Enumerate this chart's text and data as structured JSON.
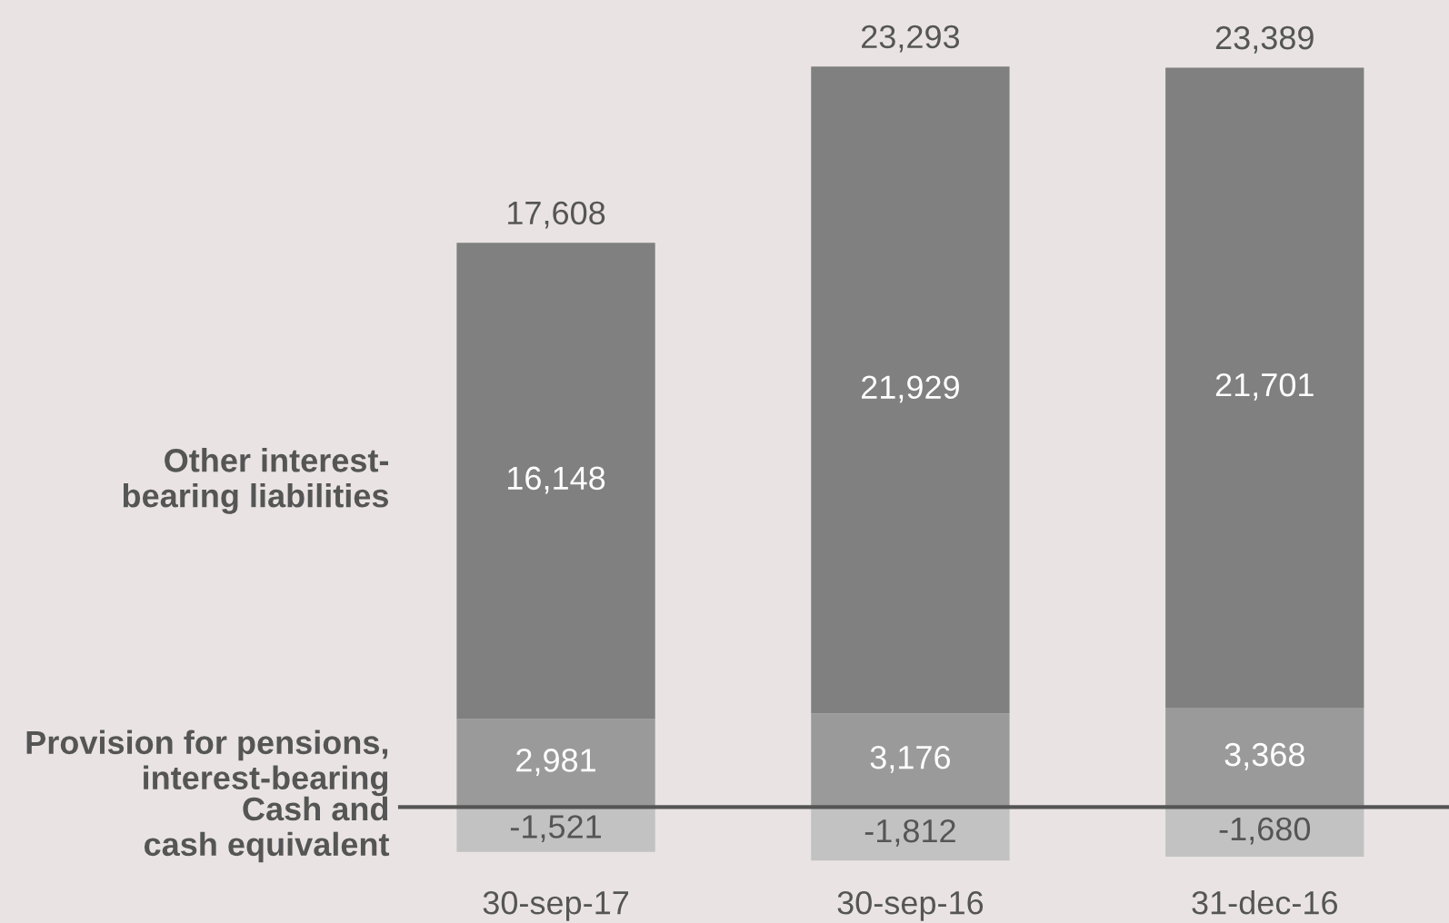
{
  "chart_data": {
    "type": "bar",
    "stacked": true,
    "categories": [
      "30-sep-17",
      "30-sep-16",
      "31-dec-16"
    ],
    "series": [
      {
        "name": "Cash and\ncash equivalent",
        "color": "#c2c2c2",
        "values": [
          -1521,
          -1812,
          -1680
        ],
        "value_labels": [
          "-1,521",
          "-1,812",
          "-1,680"
        ]
      },
      {
        "name": "Provision for pensions,\ninterest-bearing",
        "color": "#9a9a9a",
        "values": [
          2981,
          3176,
          3368
        ],
        "value_labels": [
          "2,981",
          "3,176",
          "3,368"
        ]
      },
      {
        "name": "Other interest-\nbearing liabilities",
        "color": "#808080",
        "values": [
          16148,
          21929,
          21701
        ],
        "value_labels": [
          "16,148",
          "21,929",
          "21,701"
        ]
      }
    ],
    "totals": [
      "17,608",
      "23,293",
      "23,389"
    ],
    "legend": false,
    "grid": false
  }
}
